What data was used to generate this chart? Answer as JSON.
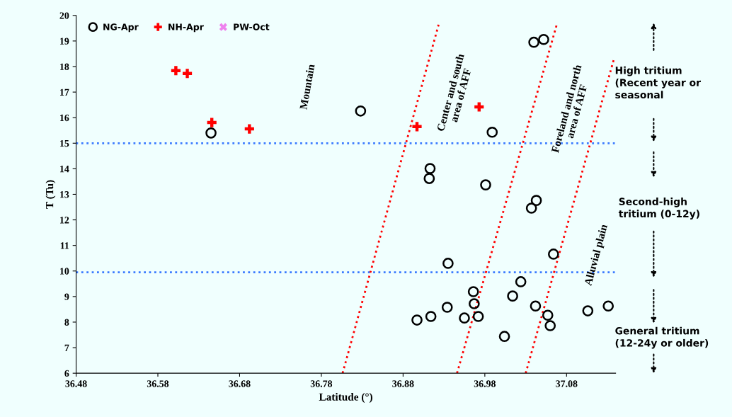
{
  "chart_data": {
    "type": "scatter",
    "xlabel": "Latitude (°)",
    "ylabel": "T (Tu)",
    "xlim": [
      36.48,
      37.14
    ],
    "xticks": [
      36.48,
      36.58,
      36.68,
      36.78,
      36.88,
      36.98,
      37.08
    ],
    "ylim": [
      6,
      20
    ],
    "yticks": [
      6,
      7,
      8,
      9,
      10,
      11,
      12,
      13,
      14,
      15,
      16,
      17,
      18,
      19,
      20
    ],
    "grid": false,
    "legend": "top left",
    "series": [
      {
        "name": "NG-Apr",
        "color": "#000000",
        "marker": "circle",
        "x": [
          36.645,
          36.828,
          37.04,
          37.052,
          36.989,
          36.913,
          36.912,
          36.981,
          37.043,
          37.037,
          37.064,
          36.935,
          37.024,
          36.966,
          37.014,
          36.967,
          36.934,
          37.042,
          37.131,
          37.106,
          36.914,
          36.897,
          36.955,
          36.972,
          37.057,
          37.06,
          37.004
        ],
        "values": [
          15.4,
          16.26,
          18.95,
          19.06,
          15.43,
          14.01,
          13.62,
          13.37,
          12.76,
          12.46,
          10.66,
          10.3,
          9.58,
          9.19,
          9.02,
          8.72,
          8.58,
          8.63,
          8.63,
          8.44,
          8.22,
          8.08,
          8.16,
          8.22,
          8.27,
          7.86,
          7.44
        ]
      },
      {
        "name": "NH-Apr",
        "color": "#ff0000",
        "marker": "cross",
        "x": [
          36.602,
          36.616,
          36.646,
          36.692,
          36.897,
          36.973
        ],
        "values": [
          17.84,
          17.73,
          15.81,
          15.56,
          15.65,
          16.42
        ]
      },
      {
        "name": "PW-Oct",
        "color": "#ee82ee",
        "marker": "x"
      },
      {
        "type": "line",
        "color": "#ff0000",
        "line_style": "dotted",
        "x": [
          36.806,
          36.924
        ],
        "values": [
          6,
          19.7
        ]
      },
      {
        "type": "line",
        "color": "#ff0000",
        "line_style": "dotted",
        "x": [
          36.946,
          37.068
        ],
        "values": [
          6,
          19.64
        ]
      },
      {
        "type": "line",
        "color": "#ff0000",
        "line_style": "dotted",
        "x": [
          37.03,
          37.138
        ],
        "values": [
          6,
          18.3
        ]
      }
    ],
    "ref_lines": [
      {
        "axis": "y",
        "value": 15,
        "color": "#3a7bff",
        "line_style": "dotted"
      },
      {
        "axis": "y",
        "value": 9.95,
        "color": "#3a7bff",
        "line_style": "dotted"
      }
    ],
    "annotations": [
      "Mountain",
      "Center and south\narea of AFF",
      "Foreland and north\narea of AFF",
      "Alluvial plain",
      "High tritium\n(Recent year or\nseasonal",
      "Second-high\ntritium (0-12y)",
      "General tritium\n(12-24y or older)"
    ]
  }
}
